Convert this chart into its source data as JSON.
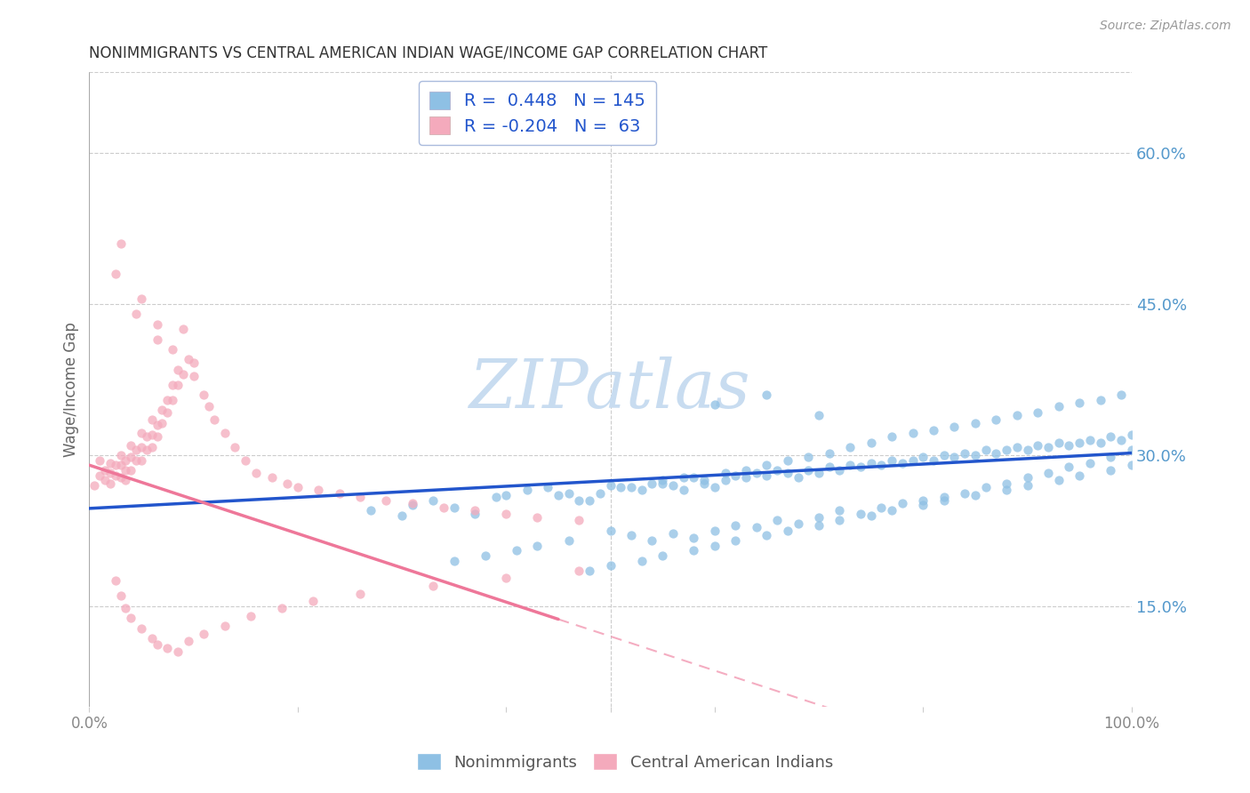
{
  "title": "NONIMMIGRANTS VS CENTRAL AMERICAN INDIAN WAGE/INCOME GAP CORRELATION CHART",
  "source": "Source: ZipAtlas.com",
  "ylabel": "Wage/Income Gap",
  "right_ytick_vals": [
    0.15,
    0.3,
    0.45,
    0.6
  ],
  "right_ytick_labels": [
    "15.0%",
    "30.0%",
    "45.0%",
    "60.0%"
  ],
  "xlim": [
    0.0,
    1.0
  ],
  "ylim": [
    0.05,
    0.68
  ],
  "blue_R": 0.448,
  "blue_N": 145,
  "pink_R": -0.204,
  "pink_N": 63,
  "blue_color": "#8EC0E4",
  "pink_color": "#F4AABC",
  "blue_line_color": "#2255CC",
  "pink_line_color": "#EE7799",
  "watermark": "ZIPatlas",
  "watermark_color": "#C8DCF0",
  "legend_border_color": "#AABBDD",
  "grid_color": "#CCCCCC",
  "title_color": "#333333",
  "source_color": "#999999",
  "right_label_color": "#5599CC",
  "xtick_color": "#888888",
  "ylabel_color": "#666666",
  "blue_scatter_x": [
    0.27,
    0.3,
    0.31,
    0.33,
    0.35,
    0.37,
    0.39,
    0.4,
    0.42,
    0.44,
    0.46,
    0.48,
    0.5,
    0.52,
    0.54,
    0.55,
    0.56,
    0.57,
    0.58,
    0.59,
    0.6,
    0.61,
    0.62,
    0.63,
    0.64,
    0.65,
    0.66,
    0.67,
    0.68,
    0.69,
    0.7,
    0.71,
    0.72,
    0.73,
    0.74,
    0.75,
    0.76,
    0.77,
    0.78,
    0.79,
    0.8,
    0.81,
    0.82,
    0.83,
    0.84,
    0.85,
    0.86,
    0.87,
    0.88,
    0.89,
    0.9,
    0.91,
    0.92,
    0.93,
    0.94,
    0.95,
    0.96,
    0.97,
    0.98,
    0.99,
    1.0,
    0.5,
    0.52,
    0.54,
    0.56,
    0.58,
    0.6,
    0.62,
    0.64,
    0.66,
    0.68,
    0.7,
    0.72,
    0.74,
    0.76,
    0.78,
    0.8,
    0.82,
    0.84,
    0.86,
    0.88,
    0.9,
    0.92,
    0.94,
    0.96,
    0.98,
    1.0,
    0.45,
    0.47,
    0.49,
    0.51,
    0.53,
    0.55,
    0.57,
    0.59,
    0.61,
    0.63,
    0.65,
    0.67,
    0.69,
    0.71,
    0.73,
    0.75,
    0.77,
    0.79,
    0.81,
    0.83,
    0.85,
    0.87,
    0.89,
    0.91,
    0.93,
    0.95,
    0.97,
    0.99,
    0.35,
    0.38,
    0.41,
    0.43,
    0.46,
    0.48,
    0.5,
    0.53,
    0.55,
    0.58,
    0.6,
    0.62,
    0.65,
    0.67,
    0.7,
    0.72,
    0.75,
    0.77,
    0.8,
    0.82,
    0.85,
    0.88,
    0.9,
    0.93,
    0.95,
    0.98,
    1.0,
    0.6,
    0.65,
    0.7
  ],
  "blue_scatter_y": [
    0.245,
    0.24,
    0.25,
    0.255,
    0.248,
    0.242,
    0.258,
    0.26,
    0.265,
    0.268,
    0.262,
    0.255,
    0.27,
    0.268,
    0.272,
    0.275,
    0.27,
    0.265,
    0.278,
    0.272,
    0.268,
    0.275,
    0.28,
    0.278,
    0.282,
    0.28,
    0.285,
    0.282,
    0.278,
    0.285,
    0.282,
    0.288,
    0.285,
    0.29,
    0.288,
    0.292,
    0.29,
    0.295,
    0.292,
    0.295,
    0.298,
    0.295,
    0.3,
    0.298,
    0.302,
    0.3,
    0.305,
    0.302,
    0.305,
    0.308,
    0.305,
    0.31,
    0.308,
    0.312,
    0.31,
    0.312,
    0.315,
    0.312,
    0.318,
    0.315,
    0.32,
    0.225,
    0.22,
    0.215,
    0.222,
    0.218,
    0.225,
    0.23,
    0.228,
    0.235,
    0.232,
    0.238,
    0.245,
    0.242,
    0.248,
    0.252,
    0.255,
    0.258,
    0.262,
    0.268,
    0.272,
    0.278,
    0.282,
    0.288,
    0.292,
    0.298,
    0.305,
    0.26,
    0.255,
    0.262,
    0.268,
    0.265,
    0.272,
    0.278,
    0.275,
    0.282,
    0.285,
    0.29,
    0.295,
    0.298,
    0.302,
    0.308,
    0.312,
    0.318,
    0.322,
    0.325,
    0.328,
    0.332,
    0.335,
    0.34,
    0.342,
    0.348,
    0.352,
    0.355,
    0.36,
    0.195,
    0.2,
    0.205,
    0.21,
    0.215,
    0.185,
    0.19,
    0.195,
    0.2,
    0.205,
    0.21,
    0.215,
    0.22,
    0.225,
    0.23,
    0.235,
    0.24,
    0.245,
    0.25,
    0.255,
    0.26,
    0.265,
    0.27,
    0.275,
    0.28,
    0.285,
    0.29,
    0.35,
    0.36,
    0.34
  ],
  "pink_scatter_x": [
    0.005,
    0.01,
    0.01,
    0.015,
    0.015,
    0.02,
    0.02,
    0.02,
    0.025,
    0.025,
    0.03,
    0.03,
    0.03,
    0.035,
    0.035,
    0.035,
    0.04,
    0.04,
    0.04,
    0.045,
    0.045,
    0.05,
    0.05,
    0.05,
    0.055,
    0.055,
    0.06,
    0.06,
    0.06,
    0.065,
    0.065,
    0.07,
    0.07,
    0.075,
    0.075,
    0.08,
    0.08,
    0.085,
    0.085,
    0.09,
    0.095,
    0.1,
    0.1,
    0.11,
    0.115,
    0.12,
    0.13,
    0.14,
    0.15,
    0.16,
    0.175,
    0.19,
    0.2,
    0.22,
    0.24,
    0.26,
    0.285,
    0.31,
    0.34,
    0.37,
    0.4,
    0.43,
    0.47
  ],
  "pink_scatter_y": [
    0.27,
    0.28,
    0.295,
    0.285,
    0.275,
    0.292,
    0.282,
    0.272,
    0.29,
    0.28,
    0.3,
    0.29,
    0.278,
    0.295,
    0.285,
    0.275,
    0.31,
    0.298,
    0.285,
    0.305,
    0.295,
    0.322,
    0.308,
    0.295,
    0.318,
    0.305,
    0.335,
    0.32,
    0.308,
    0.33,
    0.318,
    0.345,
    0.332,
    0.355,
    0.342,
    0.37,
    0.355,
    0.385,
    0.37,
    0.38,
    0.395,
    0.392,
    0.378,
    0.36,
    0.348,
    0.335,
    0.322,
    0.308,
    0.295,
    0.282,
    0.278,
    0.272,
    0.268,
    0.265,
    0.262,
    0.258,
    0.255,
    0.252,
    0.248,
    0.245,
    0.242,
    0.238,
    0.235
  ],
  "pink_extra_high_x": [
    0.025,
    0.03,
    0.045,
    0.05,
    0.065,
    0.065,
    0.08,
    0.09
  ],
  "pink_extra_high_y": [
    0.48,
    0.51,
    0.44,
    0.455,
    0.43,
    0.415,
    0.405,
    0.425
  ],
  "pink_low_x": [
    0.025,
    0.03,
    0.035,
    0.04,
    0.05,
    0.06,
    0.065,
    0.075,
    0.085,
    0.095,
    0.11,
    0.13,
    0.155,
    0.185,
    0.215,
    0.26,
    0.33,
    0.4,
    0.47
  ],
  "pink_low_y": [
    0.175,
    0.16,
    0.148,
    0.138,
    0.128,
    0.118,
    0.112,
    0.108,
    0.105,
    0.115,
    0.122,
    0.13,
    0.14,
    0.148,
    0.155,
    0.162,
    0.17,
    0.178,
    0.185
  ]
}
